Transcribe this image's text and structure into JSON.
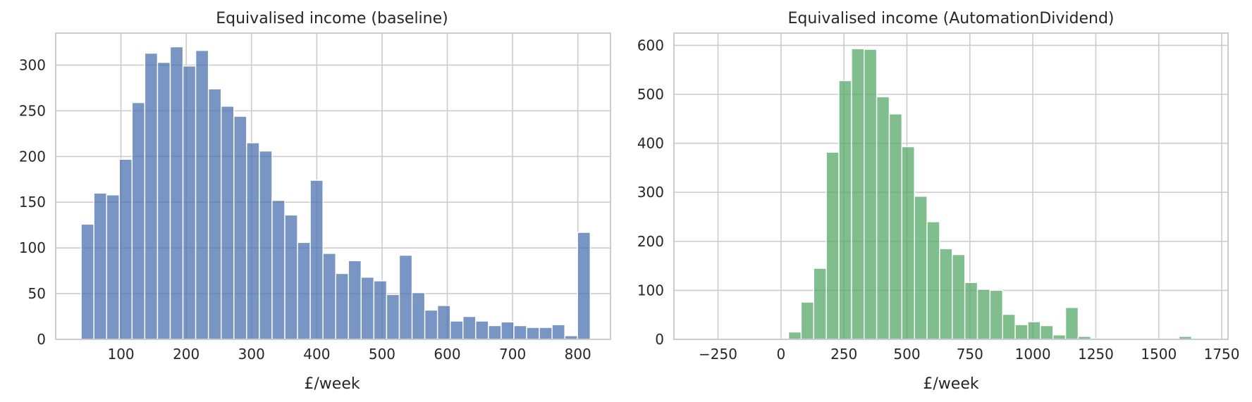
{
  "chart_data": [
    {
      "type": "bar",
      "title": "Equivalised income (baseline)",
      "xlabel": "£/week",
      "ylabel": "",
      "color": "#4c72b0",
      "xlim": [
        0,
        850
      ],
      "ylim": [
        0,
        335
      ],
      "xticks": [
        100,
        200,
        300,
        400,
        500,
        600,
        700,
        800
      ],
      "yticks": [
        0,
        50,
        100,
        150,
        200,
        250,
        300
      ],
      "grid": true,
      "bin_start": 39,
      "bin_width": 19.5,
      "values": [
        126,
        160,
        158,
        197,
        259,
        313,
        303,
        320,
        299,
        316,
        274,
        255,
        244,
        215,
        206,
        152,
        136,
        106,
        174,
        94,
        72,
        86,
        68,
        64,
        49,
        92,
        51,
        32,
        37,
        20,
        25,
        20,
        15,
        19,
        15,
        13,
        13,
        16,
        4,
        117
      ]
    },
    {
      "type": "bar",
      "title": "Equivalised income (AutomationDividend)",
      "xlabel": "£/week",
      "ylabel": "",
      "color": "#55a868",
      "xlim": [
        -425,
        1775
      ],
      "ylim": [
        0,
        625
      ],
      "xticks": [
        -250,
        0,
        250,
        500,
        750,
        1000,
        1250,
        1500,
        1750
      ],
      "yticks": [
        0,
        100,
        200,
        300,
        400,
        500,
        600
      ],
      "grid": true,
      "bin_start": -370,
      "bin_width": 50,
      "values": [
        0,
        0,
        0,
        1,
        1,
        1,
        1,
        1,
        15,
        76,
        145,
        382,
        528,
        593,
        592,
        495,
        460,
        393,
        292,
        240,
        185,
        173,
        116,
        102,
        100,
        51,
        30,
        36,
        28,
        9,
        65,
        6,
        1,
        1,
        1,
        1,
        1,
        1,
        1,
        6,
        1
      ]
    }
  ]
}
